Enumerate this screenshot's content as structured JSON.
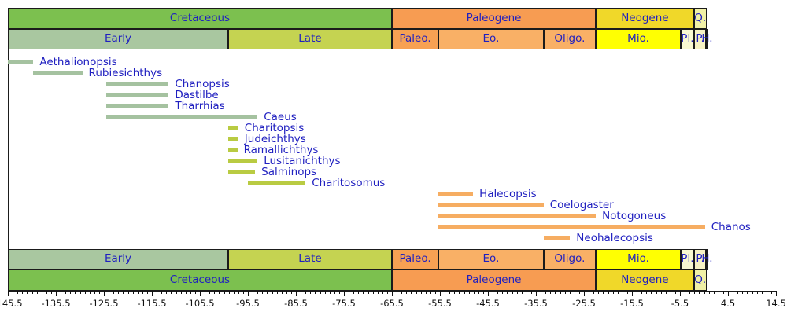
{
  "chart_data": {
    "type": "timeline-range",
    "description": "Stratigraphic range chart of gonorynchiform fish genera across the Cretaceous, Paleogene, Neogene and Quaternary",
    "axis": {
      "unit": "Ma",
      "min": -145.5,
      "max": 14.5,
      "major_tick_step": 10,
      "minor_tick_step": 1,
      "tick_labels": [
        "-145.5",
        "-135.5",
        "-125.5",
        "-115.5",
        "-105.5",
        "-95.5",
        "-85.5",
        "-75.5",
        "-65.5",
        "-55.5",
        "-45.5",
        "-35.5",
        "-25.5",
        "-15.5",
        "-5.5",
        "4.5",
        "14.5"
      ]
    },
    "periods": [
      {
        "label": "Cretaceous",
        "start": -145.5,
        "end": -65.5,
        "color": "#7cc04f"
      },
      {
        "label": "Paleogene",
        "start": -65.5,
        "end": -23.03,
        "color": "#f79c52"
      },
      {
        "label": "Neogene",
        "start": -23.03,
        "end": -2.588,
        "color": "#f0d829"
      },
      {
        "label": "Q.",
        "start": -2.588,
        "end": 0,
        "color": "#f0f0a6"
      }
    ],
    "epochs": [
      {
        "label": "Early",
        "start": -145.5,
        "end": -99.6,
        "color": "#a9c7a0"
      },
      {
        "label": "Late",
        "start": -99.6,
        "end": -65.5,
        "color": "#c5d351"
      },
      {
        "label": "Paleo.",
        "start": -65.5,
        "end": -55.8,
        "color": "#f7a153"
      },
      {
        "label": "Eo.",
        "start": -55.8,
        "end": -33.9,
        "color": "#f9b066"
      },
      {
        "label": "Oligo.",
        "start": -33.9,
        "end": -23.03,
        "color": "#f9b066"
      },
      {
        "label": "Mio.",
        "start": -23.03,
        "end": -5.332,
        "color": "#ffff02"
      },
      {
        "label": "Pl.",
        "start": -5.332,
        "end": -2.588,
        "color": "#f9f9d2"
      },
      {
        "label": "P.",
        "start": -2.588,
        "end": -0.0117,
        "color": "#f6f2c4"
      },
      {
        "label": "H.",
        "start": -0.0117,
        "end": 0,
        "color": "#f6f2c4"
      }
    ],
    "taxa": [
      {
        "name": "Aethalionopsis",
        "start": -145.5,
        "end": -140.2,
        "color": "#a5c2a0"
      },
      {
        "name": "Rubiesichthys",
        "start": -140.2,
        "end": -130.0,
        "color": "#a5c2a0"
      },
      {
        "name": "Chanopsis",
        "start": -125.0,
        "end": -112.0,
        "color": "#a5c2a0"
      },
      {
        "name": "Dastilbe",
        "start": -125.0,
        "end": -112.0,
        "color": "#a5c2a0"
      },
      {
        "name": "Tharrhias",
        "start": -125.0,
        "end": -112.0,
        "color": "#a5c2a0"
      },
      {
        "name": "Caeus",
        "start": -125.0,
        "end": -93.5,
        "color": "#a5c2a0"
      },
      {
        "name": "Charitopsis",
        "start": -99.6,
        "end": -97.5,
        "color": "#b9cb42"
      },
      {
        "name": "Judeichthys",
        "start": -99.6,
        "end": -97.5,
        "color": "#b9cb42"
      },
      {
        "name": "Ramallichthys",
        "start": -99.6,
        "end": -97.7,
        "color": "#b9cb42"
      },
      {
        "name": "Lusitanichthys",
        "start": -99.6,
        "end": -93.5,
        "color": "#b9cb42"
      },
      {
        "name": "Salminops",
        "start": -99.6,
        "end": -94.0,
        "color": "#b9cb42"
      },
      {
        "name": "Charitosomus",
        "start": -95.5,
        "end": -83.5,
        "color": "#b9cb42"
      },
      {
        "name": "Halecopsis",
        "start": -55.8,
        "end": -48.6,
        "color": "#f6ad62"
      },
      {
        "name": "Coelogaster",
        "start": -55.8,
        "end": -33.9,
        "color": "#f6ad62"
      },
      {
        "name": "Notogoneus",
        "start": -55.8,
        "end": -23.03,
        "color": "#f6ad62"
      },
      {
        "name": "Chanos",
        "start": -55.8,
        "end": -0.3,
        "color": "#f6ad62"
      },
      {
        "name": "Neohalecopsis",
        "start": -33.9,
        "end": -28.4,
        "color": "#f6ad62"
      }
    ],
    "legend_colors": {
      "early_cretaceous_bar": "#a5c2a0",
      "late_cretaceous_bar": "#b9cb42",
      "paleogene_bar": "#f6ad62",
      "label_text": "#2020c0",
      "tick_text": "#111111"
    }
  }
}
